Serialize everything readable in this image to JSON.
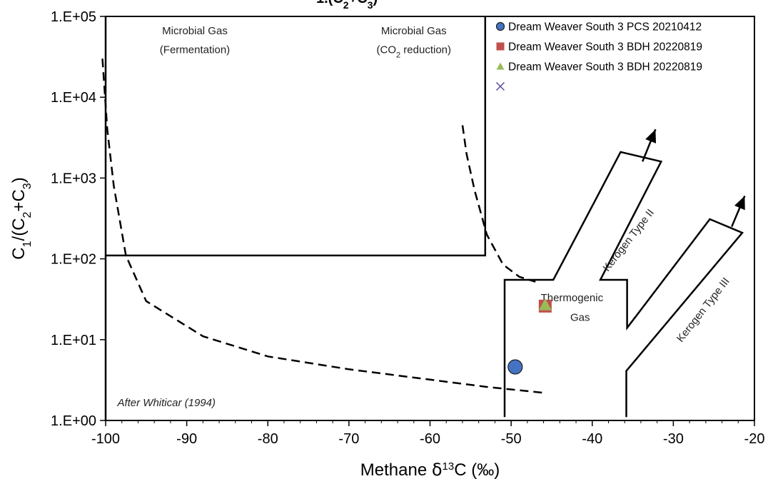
{
  "chart_data": {
    "type": "scatter",
    "x_axis": {
      "title": "Methane δ¹³C (‰)",
      "range": [
        -100,
        -20
      ],
      "ticks": [
        -100,
        -90,
        -80,
        -70,
        -60,
        -50,
        -40,
        -30,
        -20
      ],
      "tick_labels": [
        "-100",
        "-90",
        "-80",
        "-70",
        "-60",
        "-50",
        "-40",
        "-30",
        "-20"
      ]
    },
    "y_axis": {
      "title": "C1/(C2+C3)",
      "scale": "log",
      "range": [
        1,
        100000
      ],
      "ticks": [
        1,
        10,
        100,
        1000,
        10000,
        100000
      ],
      "tick_labels": [
        "1.E+00",
        "1.E+01",
        "1.E+02",
        "1.E+03",
        "1.E+04",
        "1.E+05"
      ]
    },
    "grid": false,
    "legend_placement": "top-right",
    "series": [
      {
        "name": "Dream Weaver South 3 PCS 20210412",
        "marker": "circle",
        "color": "#4472c4",
        "points": [
          {
            "x": -49.5,
            "y": 4.6
          }
        ]
      },
      {
        "name": "Dream Weaver South 3 BDH 20220819",
        "marker": "square",
        "color": "#c0504d",
        "points": [
          {
            "x": -45.8,
            "y": 26
          }
        ]
      },
      {
        "name": "Dream Weaver South 3 BDH 20220819",
        "marker": "triangle",
        "color": "#9bbb59",
        "points": [
          {
            "x": -45.8,
            "y": 27
          }
        ]
      },
      {
        "name": "",
        "marker": "x",
        "color": "#5b4c9b",
        "points": []
      }
    ],
    "reference_lines": {
      "solid_paths": [
        [
          [
            -100,
            110
          ],
          [
            -53.2,
            110
          ],
          [
            -53.2,
            100000
          ]
        ],
        [
          [
            -100,
            100000
          ],
          [
            -100,
            1
          ]
        ],
        [
          [
            -50.8,
            1.1
          ],
          [
            -50.8,
            55
          ],
          [
            -44.8,
            55
          ],
          [
            -39.5,
            560
          ],
          [
            -36.5,
            2100
          ],
          [
            -31.5,
            1600
          ],
          [
            -39,
            55
          ],
          [
            -35.7,
            55
          ],
          [
            -35.7,
            14
          ],
          [
            -25.5,
            310
          ],
          [
            -21.5,
            210
          ],
          [
            -35.8,
            4.1
          ],
          [
            -35.8,
            1.1
          ]
        ]
      ],
      "arrows": [
        {
          "from": [
            -33.8,
            1600
          ],
          "to": [
            -32.2,
            4000
          ]
        },
        {
          "from": [
            -22.8,
            250
          ],
          "to": [
            -21.2,
            600
          ]
        }
      ],
      "dashed_paths": [
        [
          [
            -100.4,
            30000
          ],
          [
            -99.8,
            4000
          ],
          [
            -99,
            800
          ],
          [
            -97.5,
            110
          ],
          [
            -95,
            30
          ],
          [
            -88,
            11
          ],
          [
            -80,
            6.2
          ],
          [
            -70,
            4.3
          ],
          [
            -60,
            3.2
          ],
          [
            -53,
            2.6
          ],
          [
            -46,
            2.2
          ]
        ],
        [
          [
            -56,
            4500
          ],
          [
            -55.5,
            2000
          ],
          [
            -54.5,
            700
          ],
          [
            -53,
            200
          ],
          [
            -51,
            85
          ],
          [
            -49,
            60
          ],
          [
            -47,
            52
          ]
        ]
      ]
    },
    "annotations": [
      {
        "text": "Microbial Gas",
        "x": -89,
        "y": 60000
      },
      {
        "text": "(Fermentation)",
        "x": -89,
        "y": 35000
      },
      {
        "text": "Microbial Gas",
        "x": -62,
        "y": 60000
      },
      {
        "text": "(CO2 reduction)",
        "x": -62,
        "y": 35000
      },
      {
        "text": "Thermogenic",
        "x": -42.5,
        "y": 30
      },
      {
        "text": "Gas",
        "x": -41.5,
        "y": 17
      },
      {
        "text": "Kerogen Type II",
        "x": -35.2,
        "y": 160,
        "rotation": -52
      },
      {
        "text": "Kerogen Type III",
        "x": -26,
        "y": 22,
        "rotation": -52
      },
      {
        "text": "After Whiticar (1994)",
        "x": -92.5,
        "y": 1.5
      }
    ]
  }
}
